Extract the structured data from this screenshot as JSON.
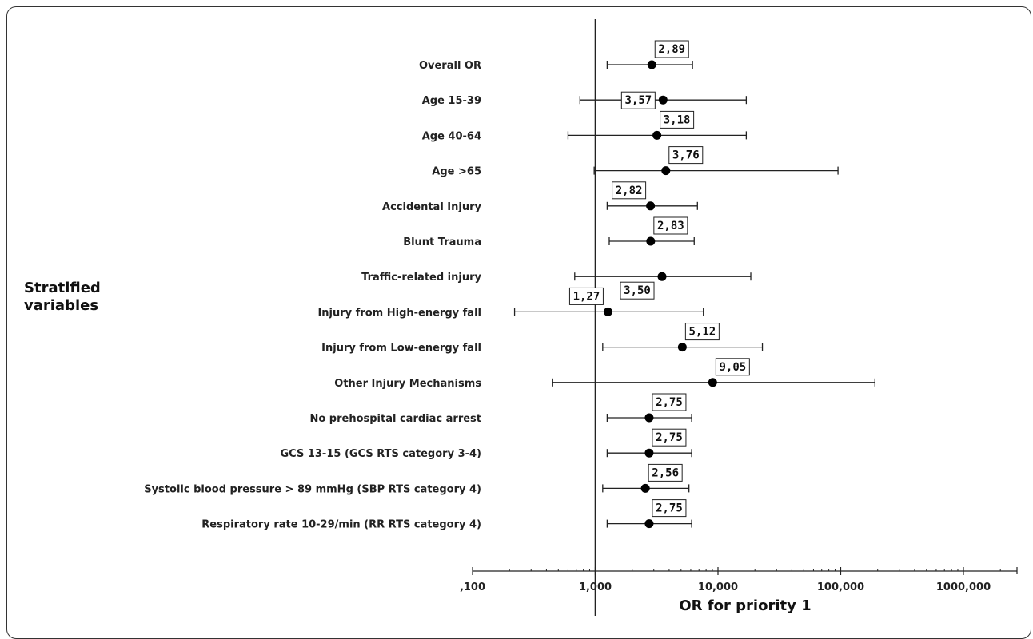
{
  "chart_data": {
    "type": "forest",
    "xscale": "log",
    "xlim": [
      0.1,
      2500
    ],
    "xlabel": "OR for priority 1",
    "ylabel": "Stratified variables",
    "reference_line": 1,
    "x_ticks": [
      {
        "value": 0.1,
        "label": ",100"
      },
      {
        "value": 1,
        "label": "1,000"
      },
      {
        "value": 10,
        "label": "10,000"
      },
      {
        "value": 100,
        "label": "100,000"
      },
      {
        "value": 1000,
        "label": "1000,000"
      }
    ],
    "rows": [
      {
        "label": "Overall OR",
        "or": 2.89,
        "lower": 1.25,
        "upper": 6.2,
        "value_label": "2,89"
      },
      {
        "label": "Age 15-39",
        "or": 3.57,
        "lower": 0.75,
        "upper": 17.0,
        "value_label": "3,57"
      },
      {
        "label": "Age 40-64",
        "or": 3.18,
        "lower": 0.6,
        "upper": 17.0,
        "value_label": "3,18"
      },
      {
        "label": "Age >65",
        "or": 3.76,
        "lower": 0.98,
        "upper": 95.0,
        "value_label": "3,76"
      },
      {
        "label": "Accidental Injury",
        "or": 2.82,
        "lower": 1.25,
        "upper": 6.8,
        "value_label": "2,82"
      },
      {
        "label": "Blunt Trauma",
        "or": 2.83,
        "lower": 1.3,
        "upper": 6.4,
        "value_label": "2,83"
      },
      {
        "label": "Traffic-related injury",
        "or": 3.5,
        "lower": 0.68,
        "upper": 18.5,
        "value_label": "3,50"
      },
      {
        "label": "Injury from High-energy fall",
        "or": 1.27,
        "lower": 0.22,
        "upper": 7.6,
        "value_label": "1,27"
      },
      {
        "label": "Injury from Low-energy fall",
        "or": 5.12,
        "lower": 1.15,
        "upper": 23.0,
        "value_label": "5,12"
      },
      {
        "label": "Other Injury Mechanisms",
        "or": 9.05,
        "lower": 0.45,
        "upper": 190.0,
        "value_label": "9,05"
      },
      {
        "label": "No prehospital cardiac arrest",
        "or": 2.75,
        "lower": 1.25,
        "upper": 6.1,
        "value_label": "2,75"
      },
      {
        "label": "GCS 13-15 (GCS RTS category 3-4)",
        "or": 2.75,
        "lower": 1.25,
        "upper": 6.1,
        "value_label": "2,75"
      },
      {
        "label": "Systolic blood pressure > 89 mmHg (SBP RTS category 4)",
        "or": 2.56,
        "lower": 1.15,
        "upper": 5.8,
        "value_label": "2,56"
      },
      {
        "label": "Respiratory rate 10-29/min (RR RTS category 4)",
        "or": 2.75,
        "lower": 1.25,
        "upper": 6.1,
        "value_label": "2,75"
      }
    ],
    "colors": {
      "marker": "#000000",
      "line": "#222222",
      "box_border": "#222222",
      "box_fill": "#ffffff"
    }
  }
}
